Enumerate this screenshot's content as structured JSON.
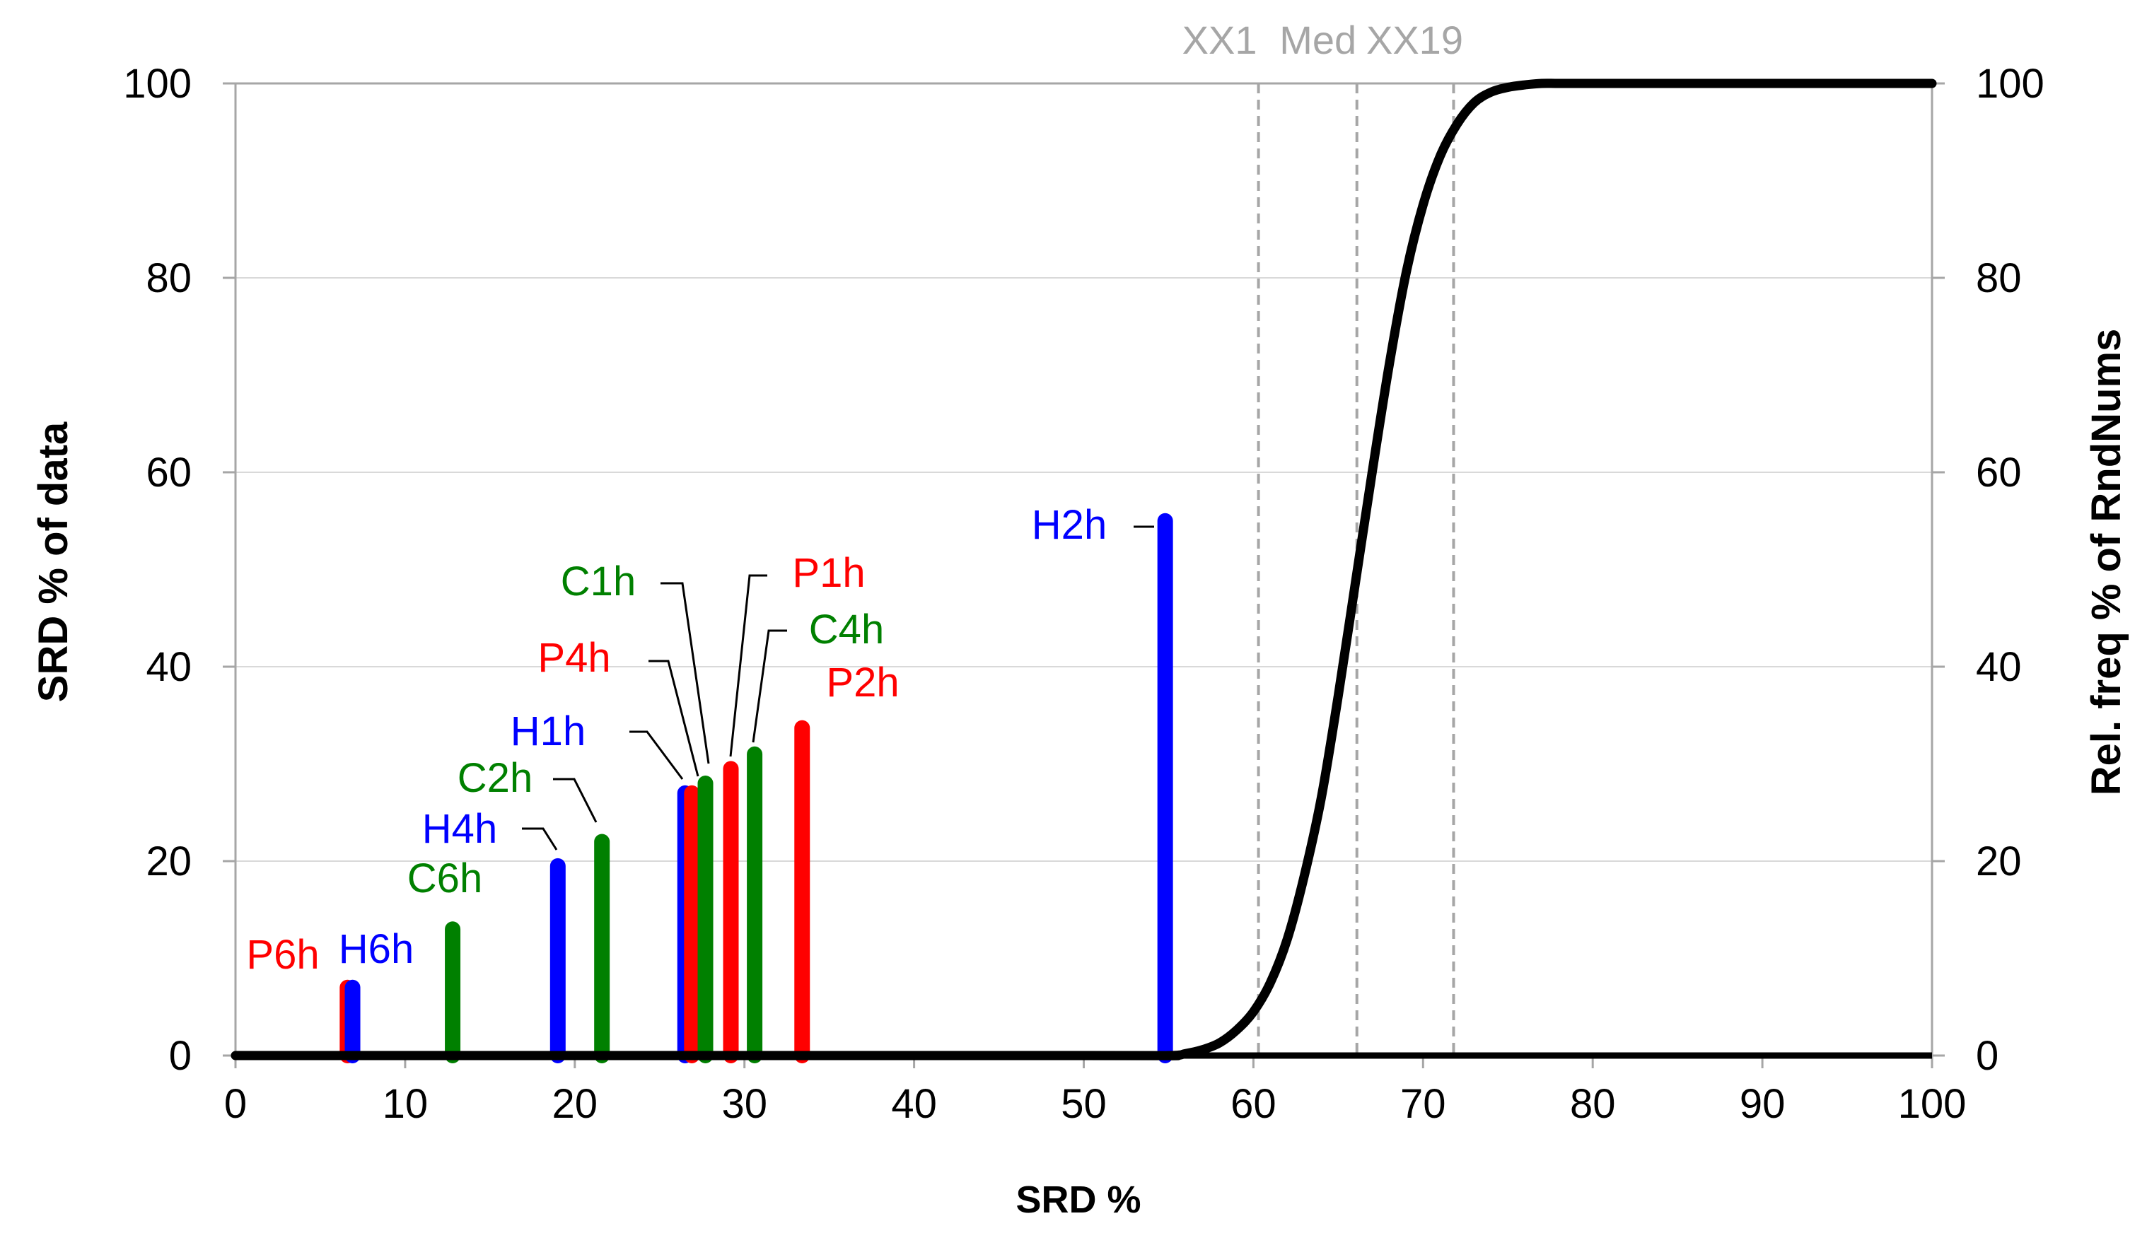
{
  "chart_data": {
    "type": "bar",
    "xlabel": "SRD %",
    "ylabel_left": "SRD % of data",
    "ylabel_right": "Rel. freq % of RndNums",
    "xlim": [
      0,
      100
    ],
    "ylim_left": [
      0,
      100
    ],
    "ylim_right": [
      0,
      100
    ],
    "xticks": [
      0,
      10,
      20,
      30,
      40,
      50,
      60,
      70,
      80,
      90,
      100
    ],
    "yticks_left": [
      0,
      20,
      40,
      60,
      80,
      100
    ],
    "yticks_right": [
      0,
      20,
      40,
      60,
      80,
      100
    ],
    "grid": "horizontal",
    "bars": [
      {
        "label": "P6h",
        "x": 6.6,
        "y": 7.0,
        "color": "#ff0000"
      },
      {
        "label": "H6h",
        "x": 6.9,
        "y": 7.0,
        "color": "#0000ff"
      },
      {
        "label": "C6h",
        "x": 12.8,
        "y": 13.0,
        "color": "#008000"
      },
      {
        "label": "H4h",
        "x": 19.0,
        "y": 19.5,
        "color": "#0000ff"
      },
      {
        "label": "C2h",
        "x": 21.6,
        "y": 22.0,
        "color": "#008000"
      },
      {
        "label": "H1h",
        "x": 26.5,
        "y": 27.0,
        "color": "#0000ff"
      },
      {
        "label": "P4h",
        "x": 26.9,
        "y": 27.0,
        "color": "#ff0000"
      },
      {
        "label": "C1h",
        "x": 27.7,
        "y": 28.0,
        "color": "#008000"
      },
      {
        "label": "P1h",
        "x": 29.2,
        "y": 29.5,
        "color": "#ff0000"
      },
      {
        "label": "C4h",
        "x": 30.6,
        "y": 31.0,
        "color": "#008000"
      },
      {
        "label": "P2h",
        "x": 33.4,
        "y": 33.7,
        "color": "#ff0000"
      },
      {
        "label": "H2h",
        "x": 54.8,
        "y": 55.0,
        "color": "#0000ff"
      }
    ],
    "curve": {
      "name": "Rel. freq % of RndNums (cumulative)",
      "axis": "right",
      "color": "#000000",
      "x": [
        0,
        50,
        55,
        56,
        57,
        58,
        59,
        60,
        61,
        62,
        63,
        64,
        65,
        66,
        67,
        68,
        69,
        70,
        71,
        72,
        73,
        74,
        75,
        76,
        77,
        78,
        80,
        100
      ],
      "y": [
        0,
        0,
        0,
        0.2,
        0.6,
        1.3,
        2.6,
        4.5,
        7.5,
        12,
        18.5,
        26.5,
        37,
        48.5,
        60,
        71,
        80.5,
        87.5,
        92.5,
        95.8,
        98,
        99.1,
        99.6,
        99.85,
        100,
        100,
        100,
        100
      ]
    },
    "reference_lines": [
      {
        "label": "XX1",
        "x": 60.3
      },
      {
        "label": "Med",
        "x": 66.1
      },
      {
        "label": "XX19",
        "x": 71.8
      }
    ],
    "colors": {
      "red": "#ff0000",
      "blue": "#0000ff",
      "green": "#008000",
      "axis": "#a6a6a6",
      "grid": "#d9d9d9",
      "refline": "#a6a6a6",
      "reflabel": "#a6a6a6"
    }
  }
}
